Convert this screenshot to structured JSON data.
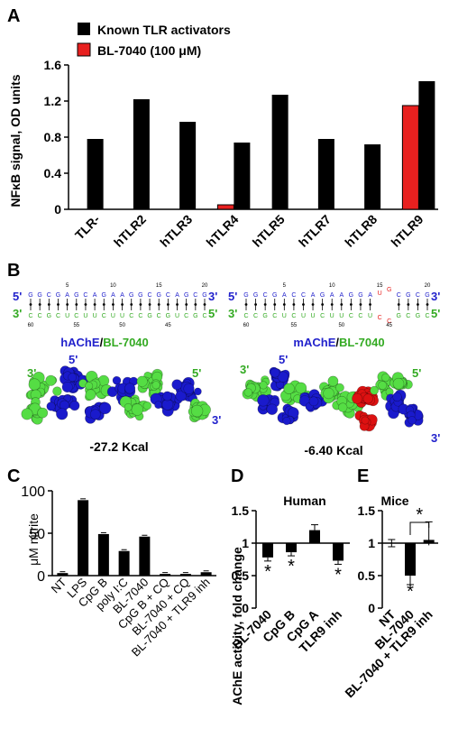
{
  "figure": {
    "panel_labels": [
      "A",
      "B",
      "C",
      "D",
      "E"
    ]
  },
  "chart_data": [
    {
      "panel": "A",
      "type": "bar",
      "title": "",
      "ylabel": "NFκB signal, OD units",
      "xlabel": "",
      "ylim": [
        0,
        1.6
      ],
      "yticks": [
        "0",
        "0.4",
        "0.8",
        "1.2",
        "1.6"
      ],
      "categories": [
        "TLR-",
        "hTLR2",
        "hTLR3",
        "hTLR4",
        "hTLR5",
        "hTLR7",
        "hTLR8",
        "hTLR9"
      ],
      "series": [
        {
          "name": "Known TLR activators",
          "color": "#000000",
          "values": [
            0.78,
            1.22,
            0.97,
            0.74,
            1.27,
            0.78,
            0.72,
            1.42
          ]
        },
        {
          "name": "BL-7040 (100 μM)",
          "color": "#e8201f",
          "values": [
            null,
            null,
            null,
            0.05,
            null,
            null,
            null,
            1.15
          ]
        }
      ],
      "legend_position": "top"
    },
    {
      "panel": "C",
      "type": "bar",
      "ylabel": "μM nitrite",
      "ylim": [
        0,
        100
      ],
      "yticks": [
        "0",
        "50",
        "100"
      ],
      "categories": [
        "NT",
        "LPS",
        "CpG B",
        "poly I:C",
        "BL-7040",
        "CpG B + CQ",
        "BL-7040 + CQ",
        "BL-7040 + TLR9 inh"
      ],
      "values": [
        3,
        89,
        49,
        29,
        46,
        2,
        2,
        4
      ]
    },
    {
      "panel": "D",
      "type": "bar",
      "title": "Human",
      "ylabel": "AChE activity, fold change",
      "ylim": [
        0,
        1.5
      ],
      "yticks": [
        "0",
        "0.5",
        "1",
        "1.5"
      ],
      "baseline": 1,
      "categories": [
        "BL-7040",
        "CpG B",
        "CpG A",
        "TLR9 inh"
      ],
      "values": [
        0.78,
        0.86,
        1.2,
        0.73
      ],
      "significant": [
        true,
        true,
        false,
        true
      ]
    },
    {
      "panel": "E",
      "type": "bar",
      "title": "Mice",
      "ylim": [
        0,
        1.5
      ],
      "yticks": [
        "0",
        "0.5",
        "1",
        "1.5"
      ],
      "baseline": 1,
      "categories": [
        "NT",
        "BL-7040",
        "BL-7040 + TLR9 inh"
      ],
      "values": [
        1.0,
        0.5,
        1.05
      ],
      "significant": [
        false,
        true,
        false
      ],
      "bracket_label": "*"
    }
  ],
  "panel_b": {
    "left": {
      "top_strand_label_5": "5'",
      "top_strand_label_3": "3'",
      "bottom_strand_label_3": "3'",
      "bottom_strand_label_5": "5'",
      "top_seq": "GGCGAGCAGAAGGCGCAGCG",
      "bottom_seq": "CCGCUCUUCUUCCGCGUCGC",
      "top_ticks": [
        "5",
        "10",
        "15",
        "20"
      ],
      "bottom_ticks": [
        "60",
        "55",
        "50",
        "45"
      ],
      "title_a": "hAChE",
      "title_sep": "/",
      "title_b": "BL-7040",
      "energy": "-27.2 Kcal",
      "end_label_3a": "3'",
      "end_label_5a": "5'",
      "end_label_5b": "5'",
      "end_label_3b": "3'"
    },
    "right": {
      "top_strand_label_5": "5'",
      "top_strand_label_3": "3'",
      "bottom_strand_label_3": "3'",
      "bottom_strand_label_5": "5'",
      "top_seq": "GGCGACCAGAAGGAUGCGCG",
      "bottom_seq": "CCGCUCUUCUUCCUCCGCGC",
      "top_ticks": [
        "5",
        "10",
        "15",
        "20"
      ],
      "bottom_ticks": [
        "60",
        "55",
        "50",
        "45"
      ],
      "title_a": "mAChE",
      "title_sep": "/",
      "title_b": "BL-7040",
      "energy": "-6.40 Kcal",
      "end_label_3a": "3'",
      "end_label_5a": "5'",
      "end_label_5b": "5'",
      "end_label_3b": "3'"
    }
  },
  "colors": {
    "blue": "#2222cc",
    "green": "#33aa22",
    "red": "#e8201f",
    "bright_green": "#55dd44",
    "deep_blue": "#1a1acc",
    "molecule_red": "#dd1111"
  }
}
